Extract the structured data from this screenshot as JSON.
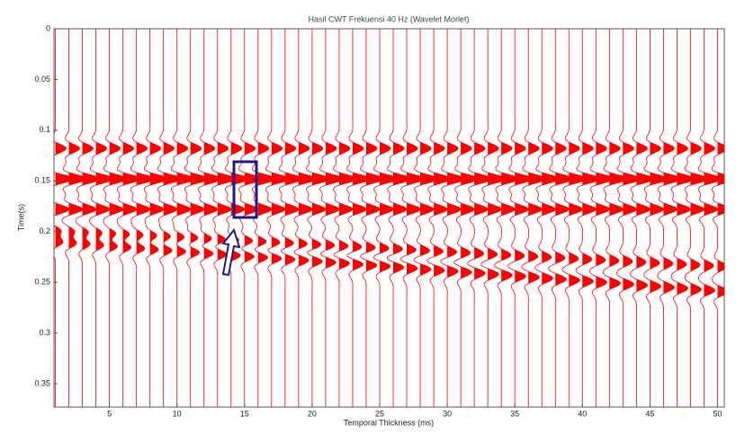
{
  "chart_data": {
    "type": "wiggle",
    "title": "Hasil CWT Frekuensi 40 Hz (Wavelet Morlet)",
    "x_label": "Temporal Thickness (ms)",
    "y_label": "Time(s)",
    "xlim": [
      0.9,
      50.5
    ],
    "ylim": [
      0,
      0.373
    ],
    "y_reversed": true,
    "xticks": [
      5,
      10,
      15,
      20,
      25,
      30,
      35,
      40,
      45,
      50
    ],
    "yticks": [
      0,
      0.05,
      0.1,
      0.15,
      0.2,
      0.25,
      0.3,
      0.35
    ],
    "color": "#ff0000",
    "x": [
      1,
      2,
      3,
      4,
      5,
      6,
      7,
      8,
      9,
      10,
      11,
      12,
      13,
      14,
      15,
      16,
      17,
      18,
      19,
      20,
      21,
      22,
      23,
      24,
      25,
      26,
      27,
      28,
      29,
      30,
      31,
      32,
      33,
      34,
      35,
      36,
      37,
      38,
      39,
      40,
      41,
      42,
      43,
      44,
      45,
      46,
      47,
      48,
      49,
      50
    ],
    "series": [
      {
        "amplitude": 0.8,
        "values": [
          0.118,
          0.118,
          0.118,
          0.118,
          0.118,
          0.118,
          0.118,
          0.118,
          0.118,
          0.118,
          0.118,
          0.118,
          0.118,
          0.118,
          0.118,
          0.118,
          0.118,
          0.118,
          0.118,
          0.118,
          0.118,
          0.118,
          0.118,
          0.118,
          0.118,
          0.118,
          0.118,
          0.118,
          0.118,
          0.118,
          0.118,
          0.118,
          0.118,
          0.118,
          0.118,
          0.118,
          0.118,
          0.118,
          0.118,
          0.118,
          0.118,
          0.118,
          0.118,
          0.118,
          0.118,
          0.118,
          0.118,
          0.118,
          0.118,
          0.118
        ]
      },
      {
        "amplitude": 1.3,
        "values": [
          0.148,
          0.148,
          0.148,
          0.148,
          0.148,
          0.148,
          0.148,
          0.148,
          0.148,
          0.148,
          0.148,
          0.148,
          0.148,
          0.148,
          0.148,
          0.148,
          0.148,
          0.148,
          0.148,
          0.148,
          0.148,
          0.148,
          0.148,
          0.148,
          0.148,
          0.148,
          0.148,
          0.148,
          0.148,
          0.148,
          0.148,
          0.148,
          0.148,
          0.148,
          0.148,
          0.148,
          0.148,
          0.148,
          0.148,
          0.148,
          0.148,
          0.148,
          0.148,
          0.148,
          0.148,
          0.148,
          0.148,
          0.148,
          0.148,
          0.148
        ]
      },
      {
        "amplitude": 1.0,
        "values": [
          0.178,
          0.178,
          0.178,
          0.178,
          0.178,
          0.178,
          0.178,
          0.178,
          0.178,
          0.178,
          0.178,
          0.178,
          0.178,
          0.178,
          0.178,
          0.178,
          0.178,
          0.178,
          0.178,
          0.178,
          0.178,
          0.178,
          0.178,
          0.178,
          0.178,
          0.178,
          0.178,
          0.178,
          0.178,
          0.178,
          0.178,
          0.178,
          0.178,
          0.178,
          0.178,
          0.178,
          0.178,
          0.178,
          0.178,
          0.178,
          0.178,
          0.178,
          0.178,
          0.178,
          0.178,
          0.178,
          0.178,
          0.178,
          0.178,
          0.178
        ]
      },
      {
        "amplitude": 0.7,
        "values": [
          0.2,
          0.2007,
          0.2014,
          0.2021,
          0.2028,
          0.2035,
          0.2042,
          0.2049,
          0.2056,
          0.2063,
          0.207,
          0.2077,
          0.2084,
          0.2091,
          0.2098,
          0.2105,
          0.2112,
          0.2119,
          0.2126,
          0.2133,
          0.214,
          0.2147,
          0.2154,
          0.2161,
          0.2168,
          0.2175,
          0.2182,
          0.2189,
          0.2196,
          0.2203,
          0.221,
          0.2217,
          0.2224,
          0.2231,
          0.2238,
          0.2245,
          0.2252,
          0.2259,
          0.2266,
          0.2273,
          0.228,
          0.2287,
          0.2294,
          0.2301,
          0.2308,
          0.2315,
          0.2322,
          0.2329,
          0.2336,
          0.2343
        ]
      },
      {
        "amplitude": 0.8,
        "values": [
          0.21,
          0.211,
          0.212,
          0.213,
          0.214,
          0.215,
          0.216,
          0.217,
          0.218,
          0.219,
          0.22,
          0.221,
          0.222,
          0.223,
          0.224,
          0.225,
          0.226,
          0.227,
          0.228,
          0.229,
          0.23,
          0.231,
          0.232,
          0.233,
          0.234,
          0.235,
          0.236,
          0.237,
          0.238,
          0.239,
          0.24,
          0.241,
          0.242,
          0.243,
          0.244,
          0.245,
          0.246,
          0.247,
          0.248,
          0.249,
          0.25,
          0.251,
          0.252,
          0.253,
          0.254,
          0.255,
          0.256,
          0.257,
          0.258,
          0.259
        ]
      }
    ]
  }
}
